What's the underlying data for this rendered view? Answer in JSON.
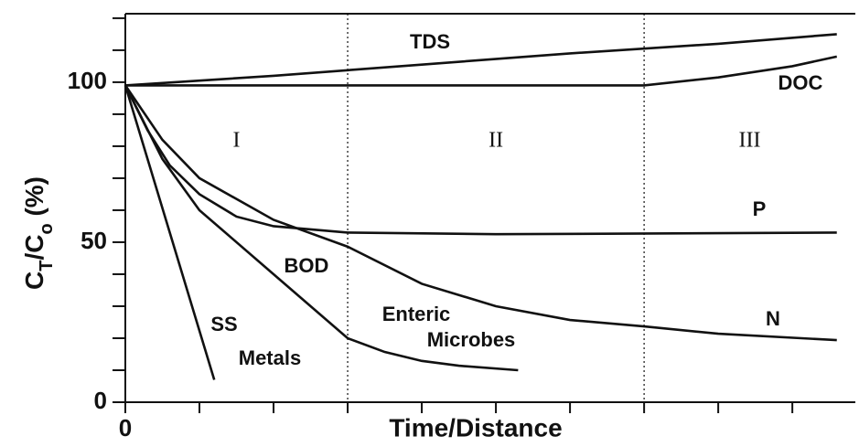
{
  "chart_data": {
    "type": "line",
    "xlabel": "Time/Distance",
    "ylabel_parts": [
      "C",
      "T",
      "/C",
      "o",
      " (%)"
    ],
    "xlim": [
      0,
      9.85
    ],
    "ylim": [
      0,
      121.4
    ],
    "xticks": [
      0
    ],
    "xminor_ticks": [
      1,
      2,
      3,
      4,
      5,
      6,
      7,
      8,
      9
    ],
    "yticks": [
      0,
      50,
      100
    ],
    "yminor_ticks": [
      10,
      20,
      30,
      40,
      60,
      70,
      80,
      90,
      110,
      120
    ],
    "region_boundaries": [
      3,
      7
    ],
    "regions": [
      "I",
      "II",
      "III"
    ],
    "color": "#111111",
    "annotations": [
      "TDS",
      "DOC",
      "P",
      "BOD",
      "N",
      "Enteric",
      "Microbes",
      "SS",
      "Metals"
    ],
    "series": [
      {
        "x": [
          0,
          2,
          4,
          6,
          8,
          9.6
        ],
        "values": [
          99,
          102,
          105.5,
          109,
          112,
          115
        ]
      },
      {
        "x": [
          0,
          7,
          8,
          9,
          9.6
        ],
        "values": [
          99,
          99,
          101.5,
          105,
          108
        ]
      },
      {
        "x": [
          0,
          0.3,
          0.6,
          1,
          1.5,
          2,
          3,
          5,
          9.6
        ],
        "values": [
          99,
          85,
          74,
          65,
          58,
          55,
          53,
          52.5,
          53
        ]
      },
      {
        "x": [
          0,
          0.5,
          1,
          2,
          3,
          4,
          5,
          6,
          7,
          8,
          9.6
        ],
        "values": [
          99,
          82,
          70,
          57,
          48.6,
          37,
          30,
          25.7,
          23.7,
          21.4,
          19.4
        ]
      },
      {
        "x": [
          0,
          0.5,
          1,
          2,
          3,
          3.5,
          4,
          4.5,
          5.3
        ],
        "values": [
          99,
          76,
          60,
          40,
          20,
          15.7,
          12.9,
          11.4,
          10
        ]
      },
      {
        "x": [
          0,
          1.2
        ],
        "values": [
          99,
          7
        ]
      }
    ]
  }
}
